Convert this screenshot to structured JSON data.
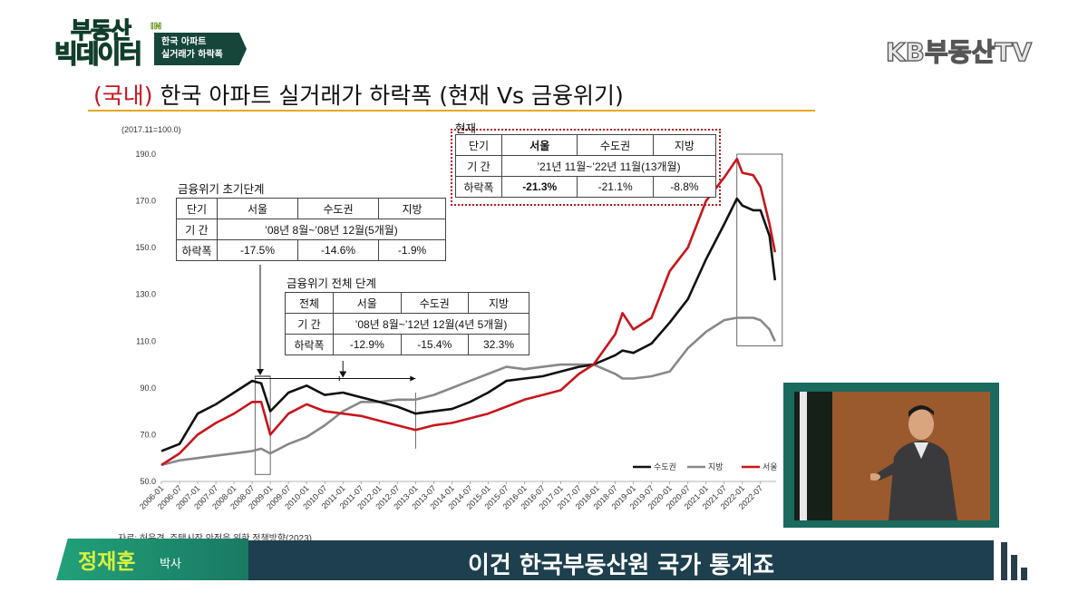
{
  "show": {
    "logo_line1": "부동산",
    "logo_line1_suffix": "IN",
    "logo_line2": "빅데이터",
    "tag_line1": "한국 아파트",
    "tag_line2": "실거래가 하락폭"
  },
  "channel": "KB부동산TV",
  "slide": {
    "title_prefix": "(국내)",
    "title_rest": " 한국 아파트 실거래가 하락폭 (현재 Vs 금융위기)"
  },
  "chart_data": {
    "type": "line",
    "index_note": "(2017.11=100.0)",
    "ylim": [
      50,
      190
    ],
    "y_ticks": [
      "50.0",
      "70.0",
      "90.0",
      "110.0",
      "130.0",
      "150.0",
      "170.0",
      "190.0"
    ],
    "x_ticks": [
      "2006-01",
      "2006-07",
      "2007-01",
      "2007-07",
      "2008-01",
      "2008-07",
      "2009-01",
      "2009-07",
      "2010-01",
      "2010-07",
      "2011-01",
      "2011-07",
      "2012-01",
      "2012-07",
      "2013-01",
      "2013-07",
      "2014-01",
      "2014-07",
      "2015-01",
      "2015-07",
      "2016-01",
      "2016-07",
      "2017-01",
      "2017-07",
      "2018-01",
      "2018-07",
      "2019-01",
      "2019-07",
      "2020-01",
      "2020-07",
      "2021-01",
      "2021-07",
      "2022-01",
      "2022-07"
    ],
    "x": [
      2006.0,
      2006.5,
      2007.0,
      2007.5,
      2008.0,
      2008.5,
      2008.75,
      2009.0,
      2009.5,
      2010.0,
      2010.5,
      2011.0,
      2011.5,
      2012.0,
      2012.5,
      2013.0,
      2013.5,
      2014.0,
      2014.5,
      2015.0,
      2015.5,
      2016.0,
      2016.5,
      2017.0,
      2017.5,
      2017.9,
      2018.5,
      2018.7,
      2019.0,
      2019.5,
      2020.0,
      2020.5,
      2021.0,
      2021.5,
      2021.85,
      2022.0,
      2022.3,
      2022.5,
      2022.75,
      2022.9
    ],
    "series": [
      {
        "name": "수도권",
        "color": "#111111",
        "values": [
          63,
          66,
          79,
          83,
          88,
          93,
          92,
          80,
          88,
          91,
          87,
          88,
          86,
          84,
          82,
          79,
          80,
          81,
          84,
          88,
          93,
          94,
          95,
          97,
          99,
          100,
          104,
          106,
          105,
          109,
          118,
          128,
          145,
          160,
          171,
          168,
          166,
          166,
          155,
          136
        ]
      },
      {
        "name": "지방",
        "color": "#888888",
        "values": [
          57,
          59,
          60,
          61,
          62,
          63,
          64,
          62,
          66,
          69,
          74,
          80,
          84,
          84,
          85,
          85,
          87,
          90,
          93,
          96,
          99,
          98,
          99,
          100,
          100,
          100,
          96,
          94,
          94,
          95,
          97,
          107,
          114,
          119,
          120,
          120,
          120,
          119,
          115,
          110
        ]
      },
      {
        "name": "서울",
        "color": "#c8151c",
        "values": [
          57,
          62,
          70,
          75,
          79,
          84,
          84,
          70,
          79,
          83,
          80,
          79,
          78,
          76,
          74,
          72,
          74,
          75,
          77,
          79,
          82,
          85,
          87,
          89,
          96,
          100,
          113,
          122,
          115,
          120,
          140,
          150,
          170,
          180,
          188,
          182,
          181,
          176,
          160,
          148
        ]
      }
    ]
  },
  "table_initial": {
    "caption": "금융위기 초기단계",
    "rows": [
      [
        "단기",
        "서울",
        "수도권",
        "지방"
      ],
      [
        "기  간",
        "’08년 8월~’08년 12월(5개월)"
      ],
      [
        "하락폭",
        "-17.5%",
        "-14.6%",
        "-1.9%"
      ]
    ]
  },
  "table_full": {
    "caption": "금융위기 전체 단계",
    "rows": [
      [
        "전체",
        "서울",
        "수도권",
        "지방"
      ],
      [
        "기  간",
        "’08년 8월~’12년 12월(4년 5개월)"
      ],
      [
        "하락폭",
        "-12.9%",
        "-15.4%",
        "32.3%"
      ]
    ]
  },
  "table_current": {
    "caption": "현재",
    "rows": [
      [
        "단기",
        "서울",
        "수도권",
        "지방"
      ],
      [
        "기  간",
        "’21년 11월~’22년 11월(13개월)"
      ],
      [
        "하락폭",
        "-21.3%",
        "-21.1%",
        "-8.8%"
      ]
    ]
  },
  "source": "자료: 허윤경, 주택시장 안정을 위한 정책방향(2023)",
  "lower_third": {
    "name": "정재훈",
    "role": "박사",
    "subtitle": "이건 한국부동산원 국가 통계죠"
  }
}
